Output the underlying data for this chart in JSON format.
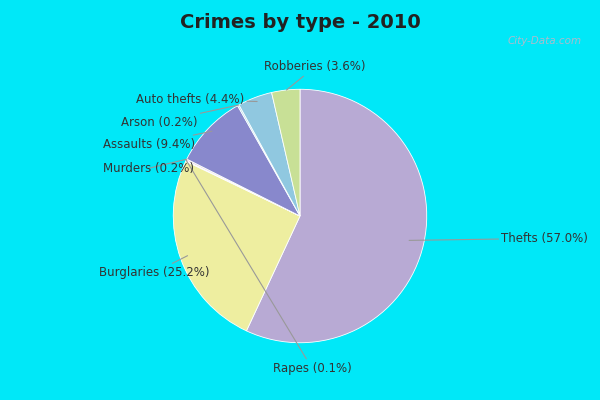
{
  "title": "Crimes by type - 2010",
  "slices": [
    {
      "label": "Thefts",
      "pct": 57.0,
      "color": "#b8aad4"
    },
    {
      "label": "Burglaries",
      "pct": 25.2,
      "color": "#eeeea0"
    },
    {
      "label": "Rapes",
      "pct": 0.1,
      "color": "#c8b8d4"
    },
    {
      "label": "Murders",
      "pct": 0.2,
      "color": "#e8c8d8"
    },
    {
      "label": "Assaults",
      "pct": 9.4,
      "color": "#8888cc"
    },
    {
      "label": "Arson",
      "pct": 0.2,
      "color": "#add8e6"
    },
    {
      "label": "Auto thefts",
      "pct": 4.4,
      "color": "#90c8e0"
    },
    {
      "label": "Robberies",
      "pct": 3.6,
      "color": "#c8e096"
    }
  ],
  "bg_cyan": "#00e8f8",
  "bg_chart": "#d4ece0",
  "title_color": "#222222",
  "title_fontsize": 14,
  "label_fontsize": 8.5,
  "label_color": "#333333",
  "watermark": "City-Data.com",
  "watermark_color": "#aabbcc"
}
